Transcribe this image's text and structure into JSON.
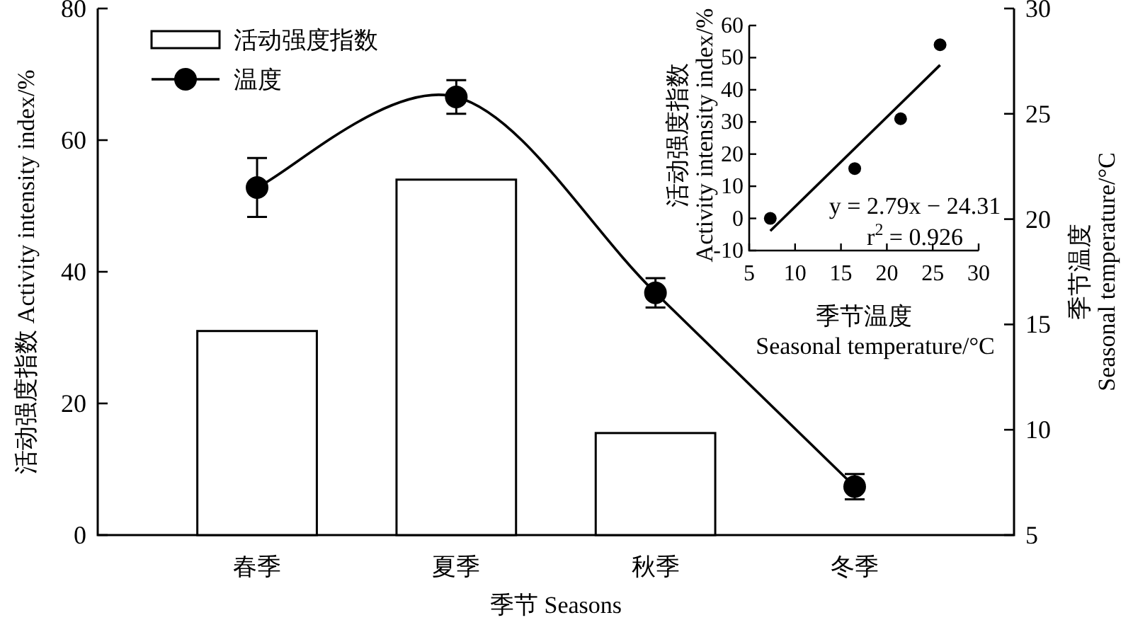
{
  "chart_data": [
    {
      "type": "bar",
      "categories": [
        "春季",
        "夏季",
        "秋季",
        "冬季"
      ],
      "series": [
        {
          "name": "活动强度指数",
          "color": "#ffffff",
          "values": [
            31,
            54,
            15.5,
            0
          ]
        },
        {
          "name": "温度",
          "type": "line",
          "axis": "y2",
          "marker": "circle",
          "color": "#000000",
          "values": [
            21.5,
            25.8,
            16.5,
            7.3
          ],
          "errors": [
            1.4,
            0.8,
            0.7,
            0.6
          ]
        }
      ],
      "xlabel": "季节 Seasons",
      "ylabel": "活动强度指数 Activity intensity index/%",
      "y2label": "季节温度 Seasonal temperature/°C",
      "ylim": [
        0,
        80
      ],
      "yticks": [
        0,
        20,
        40,
        60,
        80
      ],
      "y2lim": [
        5,
        30
      ],
      "y2ticks": [
        5,
        10,
        15,
        20,
        25,
        30
      ],
      "legend": "top left"
    },
    {
      "type": "scatter",
      "x": [
        21.5,
        25.8,
        16.5,
        7.3
      ],
      "series": [
        {
          "marker": "circle",
          "color": "#000000",
          "values": [
            31,
            54,
            15.5,
            0
          ]
        },
        {
          "type": "line",
          "marker": "none",
          "color": "#000000",
          "x": [
            7.3,
            25.8
          ],
          "values": [
            -3.9,
            47.7
          ]
        }
      ],
      "xlabel": "季节温度 Seasonal temperature/°C",
      "ylabel": "活动强度指数 Activity intensity index/%",
      "xlim": [
        5,
        30
      ],
      "xticks": [
        5,
        10,
        15,
        20,
        25,
        30
      ],
      "ylim": [
        -10,
        60
      ],
      "yticks": [
        -10,
        0,
        10,
        20,
        30,
        40,
        50,
        60
      ],
      "annotations": [
        "y = 2.79x − 24.31",
        "r$^{2}$ = 0.926"
      ]
    }
  ]
}
